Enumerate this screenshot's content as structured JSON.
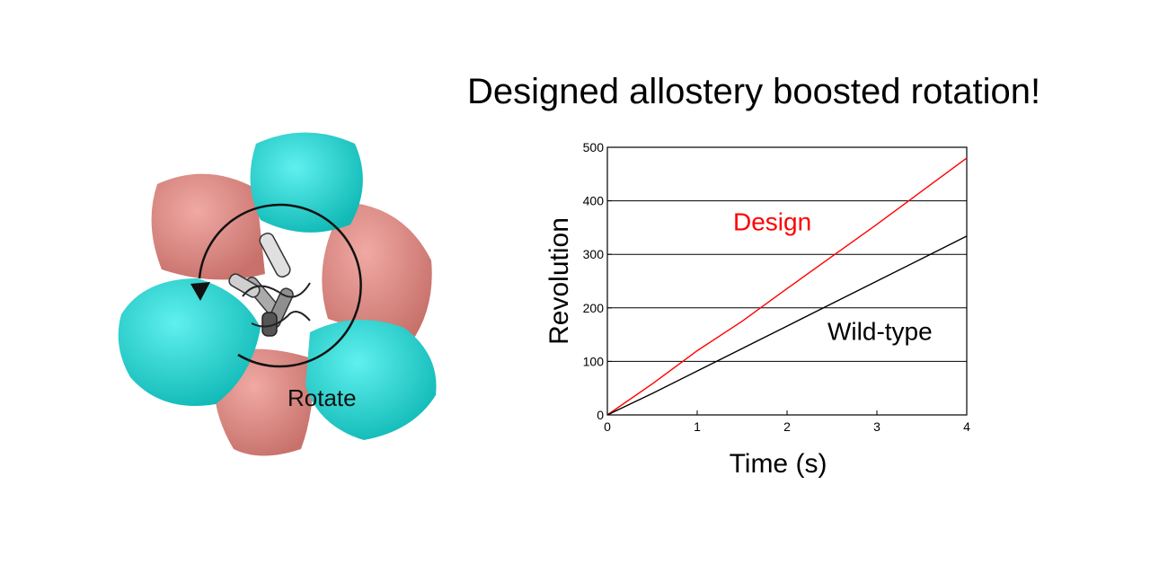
{
  "slide": {
    "title": "Designed allostery boosted rotation!"
  },
  "illustration": {
    "rotate_label": "Rotate",
    "colors": {
      "cyan_subunit": "#17d3d0",
      "pink_subunit": "#d9847e",
      "shaft": "#9a9a9a"
    }
  },
  "chart_data": {
    "type": "line",
    "title": "",
    "xlabel": "Time (s)",
    "ylabel": "Revolution",
    "xlim": [
      0,
      4
    ],
    "ylim": [
      0,
      500
    ],
    "xticks": [
      0,
      1,
      2,
      3,
      4
    ],
    "yticks": [
      0,
      100,
      200,
      300,
      400,
      500
    ],
    "grid": "horizontal",
    "series": [
      {
        "name": "Design",
        "color": "#ff0000",
        "x": [
          0,
          0.5,
          1,
          1.5,
          2,
          2.5,
          3,
          3.5,
          4
        ],
        "y": [
          0,
          58,
          120,
          175,
          236,
          296,
          356,
          418,
          480
        ]
      },
      {
        "name": "Wild-type",
        "color": "#000000",
        "x": [
          0,
          0.5,
          1,
          1.5,
          2,
          2.5,
          3,
          3.5,
          4
        ],
        "y": [
          0,
          40,
          82,
          124,
          166,
          208,
          250,
          292,
          334
        ]
      }
    ]
  }
}
